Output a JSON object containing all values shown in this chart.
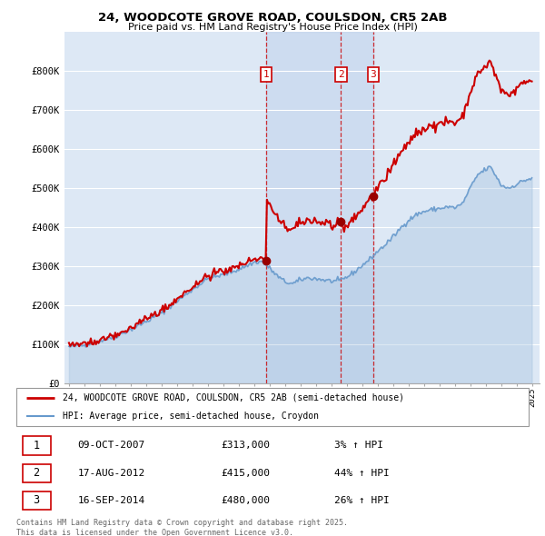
{
  "title_line1": "24, WOODCOTE GROVE ROAD, COULSDON, CR5 2AB",
  "title_line2": "Price paid vs. HM Land Registry's House Price Index (HPI)",
  "ylim": [
    0,
    900000
  ],
  "yticks": [
    0,
    100000,
    200000,
    300000,
    400000,
    500000,
    600000,
    700000,
    800000
  ],
  "ytick_labels": [
    "£0",
    "£100K",
    "£200K",
    "£300K",
    "£400K",
    "£500K",
    "£600K",
    "£700K",
    "£800K"
  ],
  "xlim_start": 1994.7,
  "xlim_end": 2025.5,
  "plot_bg_color": "#dde8f5",
  "grid_color": "#ffffff",
  "red_color": "#cc0000",
  "blue_color": "#6699cc",
  "highlight_color": "#c8d8f0",
  "sale_dates": [
    2007.77,
    2012.63,
    2014.71
  ],
  "sale_prices": [
    313000,
    415000,
    480000
  ],
  "sale_labels": [
    "1",
    "2",
    "3"
  ],
  "legend_red_label": "24, WOODCOTE GROVE ROAD, COULSDON, CR5 2AB (semi-detached house)",
  "legend_blue_label": "HPI: Average price, semi-detached house, Croydon",
  "transaction_rows": [
    {
      "num": "1",
      "date": "09-OCT-2007",
      "price": "£313,000",
      "hpi": "3% ↑ HPI"
    },
    {
      "num": "2",
      "date": "17-AUG-2012",
      "price": "£415,000",
      "hpi": "44% ↑ HPI"
    },
    {
      "num": "3",
      "date": "16-SEP-2014",
      "price": "£480,000",
      "hpi": "26% ↑ HPI"
    }
  ],
  "footnote": "Contains HM Land Registry data © Crown copyright and database right 2025.\nThis data is licensed under the Open Government Licence v3.0."
}
